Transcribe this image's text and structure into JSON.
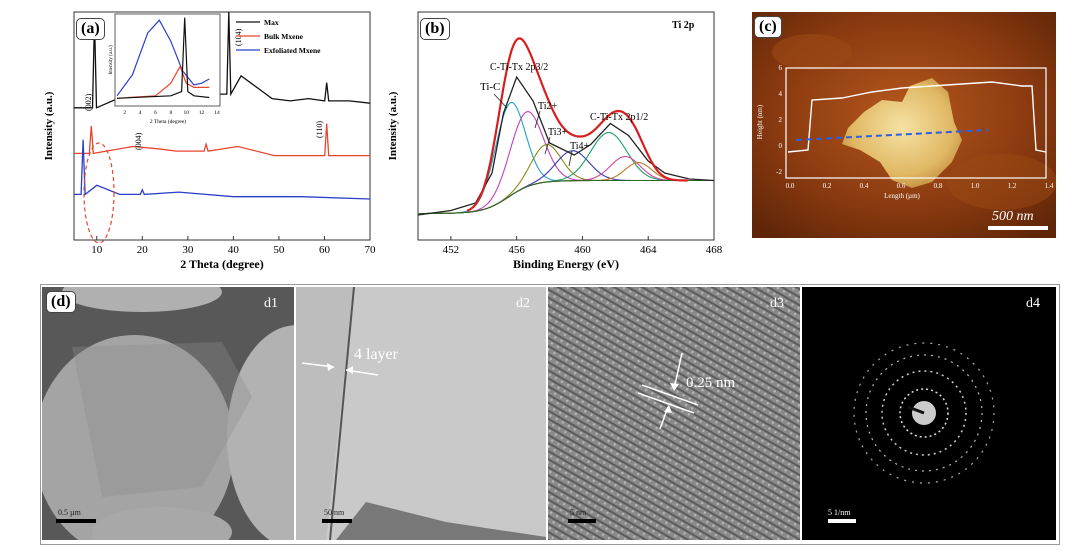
{
  "panel_a": {
    "label": "(a)",
    "xlabel": "2 Theta (degree)",
    "ylabel": "Intensity (a.u.)",
    "xticks": [
      "10",
      "20",
      "30",
      "40",
      "50",
      "60",
      "70"
    ],
    "legend": [
      "Max",
      "Bulk Mxene",
      "Exfoliated Mxene"
    ],
    "peak_labels": [
      "(002)",
      "(004)",
      "(104)",
      "(110)"
    ],
    "inset_xlabel": "2 Theta (degree)",
    "inset_ylabel": "Intensity (a.u.)",
    "inset_xticks": [
      "2",
      "4",
      "6",
      "8",
      "10",
      "12",
      "14"
    ],
    "colors": {
      "max": "#111111",
      "bulk": "#e8452f",
      "exfoliated": "#2c3fc9"
    }
  },
  "panel_b": {
    "label": "(b)",
    "title": "Ti 2p",
    "xlabel": "Binding Energy (eV)",
    "ylabel": "Intensity (a.u.)",
    "xticks": [
      "452",
      "456",
      "460",
      "464",
      "468"
    ],
    "peak_labels": [
      "Ti-C",
      "C-Ti-Tx 2p3/2",
      "Ti2+",
      "Ti3+",
      "Ti4+",
      "C-Ti-Tx 2p1/2"
    ]
  },
  "panel_c": {
    "label": "(c)",
    "scale_bar": "500 nm",
    "xlabel": "Length (µm)",
    "ylabel": "Height (nm)",
    "xticks": [
      "0.0",
      "0.2",
      "0.4",
      "0.6",
      "0.8",
      "1.0",
      "1.2",
      "1.4"
    ],
    "yticks": [
      "6",
      "4",
      "2",
      "0",
      "-2"
    ]
  },
  "panel_d": {
    "label": "(d)",
    "tiles": [
      {
        "label": "d1",
        "scale": "0.5 µm"
      },
      {
        "label": "d2",
        "scale": "50 nm",
        "annotation": "4 layer"
      },
      {
        "label": "d3",
        "scale": "5 nm",
        "annotation": "0.25 nm"
      },
      {
        "label": "d4",
        "scale": "5 1/nm"
      }
    ]
  },
  "chart_data": [
    {
      "type": "line",
      "title": "",
      "xlabel": "2 Theta (degree)",
      "ylabel": "Intensity (a.u.)",
      "xlim": [
        5,
        70
      ],
      "series": [
        {
          "name": "Max",
          "x": [
            5,
            9.5,
            19.2,
            34,
            36,
            39,
            41.7,
            48.5,
            52.5,
            56.5,
            60.5,
            65.5,
            70
          ],
          "y": [
            0.58,
            0.97,
            0.66,
            0.66,
            0.64,
            1.0,
            0.72,
            0.62,
            0.61,
            0.62,
            0.69,
            0.61,
            0.6
          ]
        },
        {
          "name": "Bulk Mxene",
          "x": [
            5,
            8.8,
            18,
            23.5,
            27.5,
            34,
            41,
            49,
            60.5,
            70
          ],
          "y": [
            0.38,
            0.5,
            0.41,
            0.4,
            0.39,
            0.42,
            0.41,
            0.37,
            0.51,
            0.37
          ]
        },
        {
          "name": "Exfoliated Mxene",
          "x": [
            5,
            7,
            10,
            15,
            20,
            28,
            40,
            55,
            70
          ],
          "y": [
            0.2,
            0.44,
            0.24,
            0.2,
            0.22,
            0.21,
            0.19,
            0.19,
            0.18
          ]
        }
      ]
    },
    {
      "type": "line",
      "title": "Ti 2p",
      "xlabel": "Binding Energy (eV)",
      "ylabel": "Intensity (a.u.)",
      "xlim": [
        450,
        468
      ],
      "series": [
        {
          "name": "",
          "x": [
            450,
            452,
            453.5,
            454.5,
            455.2,
            456,
            457,
            458,
            459.5,
            460.5,
            461.7,
            462.8,
            464,
            465,
            466.5,
            468
          ],
          "y": [
            0.02,
            0.05,
            0.1,
            0.3,
            0.7,
            0.94,
            0.78,
            0.5,
            0.42,
            0.49,
            0.63,
            0.55,
            0.38,
            0.3,
            0.26,
            0.25
          ]
        }
      ]
    }
  ]
}
